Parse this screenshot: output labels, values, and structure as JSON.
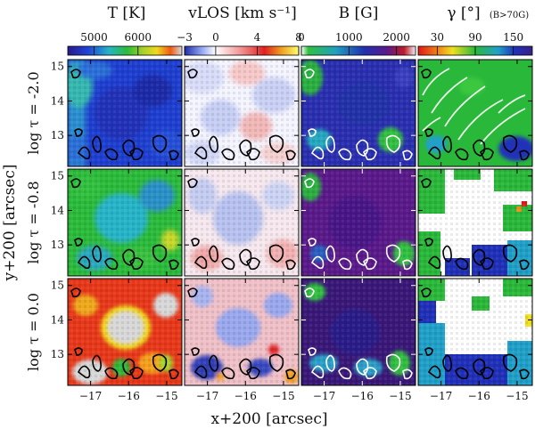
{
  "chart_data": {
    "type": "heatmap",
    "panels_layout": {
      "rows": 3,
      "cols": 4
    },
    "xlabel": "x+200 [arcsec]",
    "ylabel": "y+200 [arcsec]",
    "x_ticks": [
      "−17",
      "−16",
      "−15"
    ],
    "y_ticks": [
      "15",
      "14",
      "13"
    ],
    "x_tick_values": [
      -17,
      -16,
      -15
    ],
    "y_tick_values": [
      15,
      14,
      13
    ],
    "xlim": [
      -17.6,
      -14.6
    ],
    "ylim": [
      12.1,
      15.2
    ],
    "rows": [
      {
        "label": "log τ = -2.0",
        "log_tau": -2.0
      },
      {
        "label": "log τ = -0.8",
        "log_tau": -0.8
      },
      {
        "label": "log τ = 0.0",
        "log_tau": 0.0
      }
    ],
    "columns": [
      {
        "title": "T [K]",
        "quantity": "temperature",
        "unit": "K",
        "colorbar_ticks": [
          "5000",
          "6000"
        ],
        "colorbar_tick_values": [
          5000,
          6000
        ],
        "colorbar_range": [
          4400,
          7000
        ],
        "colormap": "rainbow",
        "contour_color": "#000000"
      },
      {
        "title": "vLOS [km s⁻¹]",
        "quantity": "line-of-sight velocity",
        "unit": "km s-1",
        "colorbar_ticks": [
          "−3",
          "0",
          "4",
          "8"
        ],
        "colorbar_tick_values": [
          -3,
          0,
          4,
          8
        ],
        "colorbar_range": [
          -3,
          8
        ],
        "colormap": "blue-white-red-yellow",
        "contour_color": "#000000"
      },
      {
        "title": "B [G]",
        "quantity": "magnetic field strength",
        "unit": "G",
        "colorbar_ticks": [
          "0",
          "1000",
          "2000"
        ],
        "colorbar_tick_values": [
          0,
          1000,
          2000
        ],
        "colorbar_range": [
          0,
          2400
        ],
        "colormap": "inverted-rainbow",
        "contour_color": "#ffffff"
      },
      {
        "title": "γ [°]",
        "title_note": "(B>70G)",
        "quantity": "inclination",
        "unit": "deg",
        "colorbar_ticks": [
          "30",
          "90",
          "150"
        ],
        "colorbar_tick_values": [
          30,
          90,
          150
        ],
        "colorbar_range": [
          0,
          180
        ],
        "colormap": "red-yellow-green-blue",
        "contour_color": "#000000"
      }
    ]
  }
}
